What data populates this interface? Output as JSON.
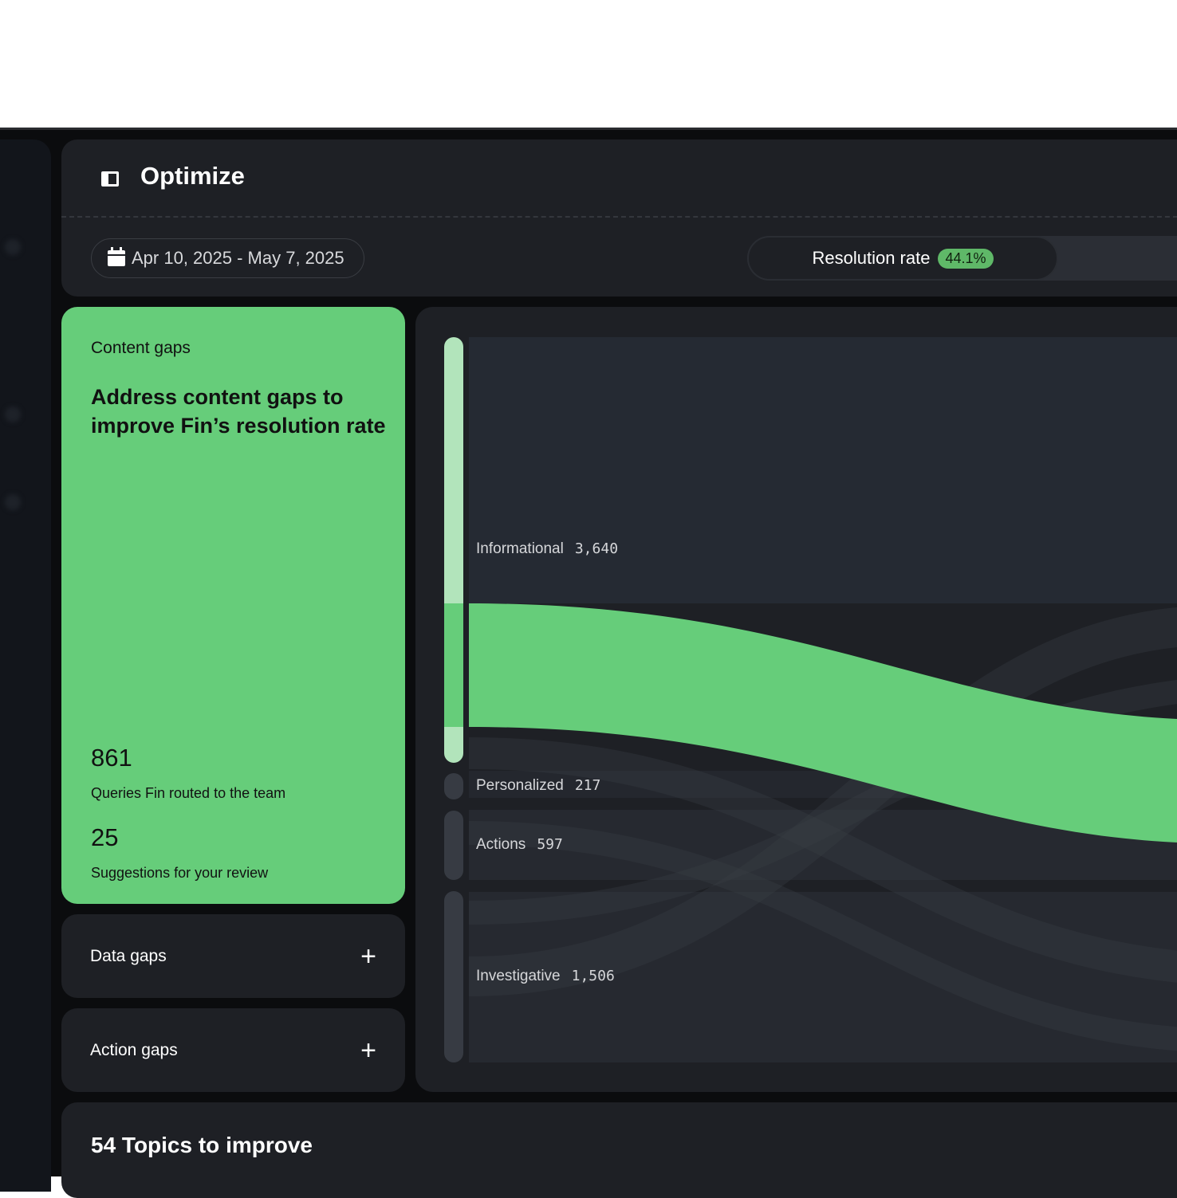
{
  "header": {
    "title": "Optimize",
    "date_range": "Apr 10, 2025 - May 7, 2025",
    "resolution_label": "Resolution rate",
    "resolution_value": "44.1%"
  },
  "content_gaps": {
    "label": "Content gaps",
    "title": "Address content gaps to improve Fin’s resolution rate",
    "stat1_value": "861",
    "stat1_label": "Queries Fin routed to the team",
    "stat2_value": "25",
    "stat2_label": "Suggestions for your review"
  },
  "accordions": [
    {
      "label": "Data gaps"
    },
    {
      "label": "Action gaps"
    }
  ],
  "sankey": {
    "nodes": [
      {
        "name": "Informational",
        "value": "3,640"
      },
      {
        "name": "Personalized",
        "value": "217"
      },
      {
        "name": "Actions",
        "value": "597"
      },
      {
        "name": "Investigative",
        "value": "1,506"
      }
    ],
    "highlight_color": "#66cd7a"
  },
  "topics": {
    "title": "54 Topics to improve"
  }
}
